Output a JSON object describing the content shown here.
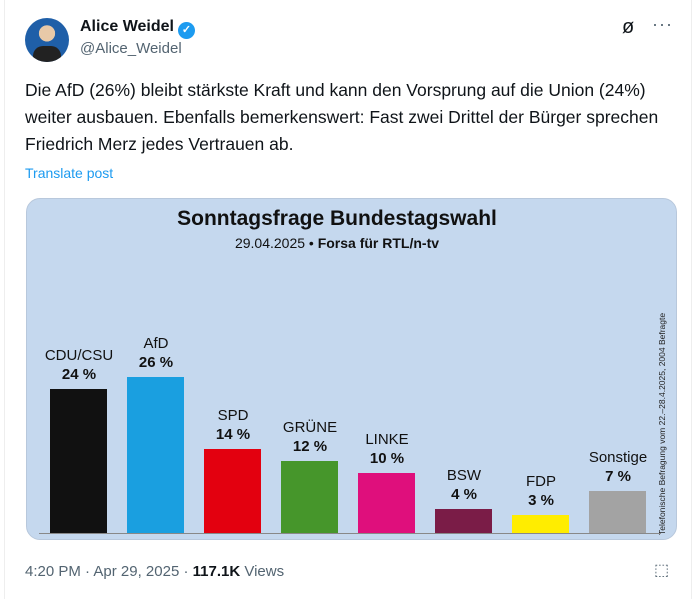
{
  "author": {
    "name": "Alice Weidel",
    "handle": "@Alice_Weidel",
    "verified_icon": "verified-badge-icon"
  },
  "post": {
    "text": "Die AfD (26%) bleibt stärkste Kraft und kann den Vorsprung auf die Union (24%) weiter ausbauen. Ebenfalls bemerkenswert: Fast zwei Drittel der Bürger sprechen Friedrich Merz jedes Vertrauen ab.",
    "translate_label": "Translate post"
  },
  "meta": {
    "time": "4:20 PM",
    "date": "Apr 29, 2025",
    "separator": "·",
    "views_count": "117.1K",
    "views_label": "Views"
  },
  "chart_data": {
    "type": "bar",
    "title": "Sonntagsfrage Bundestagswahl",
    "subtitle_date": "29.04.2025 •",
    "subtitle_source": "Forsa für RTL/n-tv",
    "note": "Telefonische Befragung vom 22.–28.4.2025, 2004 Befragte",
    "categories": [
      "CDU/CSU",
      "AfD",
      "SPD",
      "GRÜNE",
      "LINKE",
      "BSW",
      "FDP",
      "Sonstige"
    ],
    "values": [
      24,
      26,
      14,
      12,
      10,
      4,
      3,
      7
    ],
    "value_labels": [
      "24 %",
      "26 %",
      "14 %",
      "12 %",
      "10 %",
      "4 %",
      "3 %",
      "7 %"
    ],
    "colors": [
      "#111111",
      "#1a9fe0",
      "#e3000f",
      "#46962b",
      "#df0f7c",
      "#7a1c47",
      "#ffed00",
      "#a3a3a3"
    ],
    "background": "#c5d8ee"
  }
}
